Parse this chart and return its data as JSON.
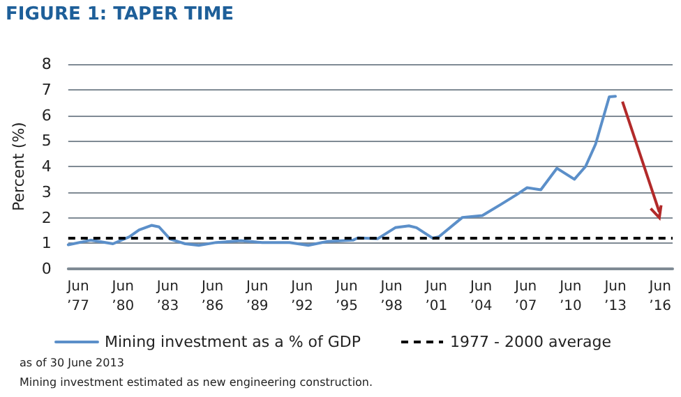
{
  "chart_data": {
    "type": "line",
    "title": "FIGURE 1: TAPER TIME",
    "ylabel": "Percent (%)",
    "annotations": [
      "as of 30 June 2013",
      "Mining investment estimated as new engineering construction."
    ],
    "series": [
      {
        "name": "Mining investment as a % of GDP",
        "color": "#5b8fc9",
        "x": [
          "1976-10",
          "1978-04",
          "1979-10",
          "1980-11",
          "1981-07",
          "1982-05",
          "1982-11",
          "1983-08",
          "1984-08",
          "1985-07",
          "1986-09",
          "1988-05",
          "1989-10",
          "1991-08",
          "1992-11",
          "1994-02",
          "1995-11",
          "1996-03",
          "1997-07",
          "1998-09",
          "1999-08",
          "2000-02",
          "2001-03",
          "2001-08",
          "2003-03",
          "2004-07",
          "2005-10",
          "2006-10",
          "2007-07",
          "2008-06",
          "2009-07",
          "2010-09",
          "2011-06",
          "2012-02",
          "2013-01",
          "2013-06"
        ],
        "values": [
          0.94,
          1.12,
          0.98,
          1.25,
          1.52,
          1.7,
          1.64,
          1.16,
          0.98,
          0.92,
          1.03,
          1.1,
          1.03,
          1.03,
          0.92,
          1.07,
          1.12,
          1.21,
          1.18,
          1.61,
          1.68,
          1.61,
          1.2,
          1.25,
          2.01,
          2.08,
          2.52,
          2.88,
          3.17,
          3.09,
          3.93,
          3.5,
          4.0,
          4.87,
          6.72,
          6.74
        ]
      }
    ],
    "ref_lines": [
      {
        "axis": "y",
        "value": 1.2,
        "label": "1977 - 2000 average",
        "color": "#000000",
        "line_style": "dashed"
      }
    ],
    "xlim": [
      "1976-10",
      "2017-04"
    ],
    "xticks": [
      {
        "value": "1977-06",
        "label": "Jun\n’77"
      },
      {
        "value": "1980-06",
        "label": "Jun\n’80"
      },
      {
        "value": "1983-06",
        "label": "Jun\n’83"
      },
      {
        "value": "1986-06",
        "label": "Jun\n’86"
      },
      {
        "value": "1989-06",
        "label": "Jun\n’89"
      },
      {
        "value": "1992-06",
        "label": "Jun\n’92"
      },
      {
        "value": "1995-06",
        "label": "Jun\n’95"
      },
      {
        "value": "1998-06",
        "label": "Jun\n’98"
      },
      {
        "value": "2001-06",
        "label": "Jun\n’01"
      },
      {
        "value": "2004-06",
        "label": "Jun\n’04"
      },
      {
        "value": "2007-06",
        "label": "Jun\n’07"
      },
      {
        "value": "2010-06",
        "label": "Jun\n’10"
      },
      {
        "value": "2013-06",
        "label": "Jun\n’13"
      },
      {
        "value": "2016-06",
        "label": "Jun\n’16"
      }
    ],
    "ylim": [
      0,
      8
    ],
    "yticks": [
      0,
      1,
      2,
      3,
      4,
      5,
      6,
      7,
      8
    ],
    "grid": "y",
    "legend": "bottom",
    "marker": "none",
    "line_style": "solid"
  }
}
